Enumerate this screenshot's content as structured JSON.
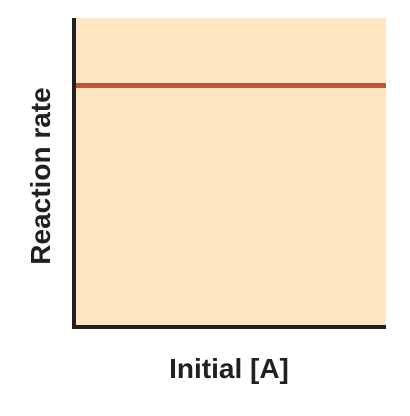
{
  "chart_data": {
    "type": "line",
    "xlabel": "Initial [A]",
    "ylabel": "Reaction rate",
    "xlim": [
      0,
      1
    ],
    "ylim": [
      0,
      1
    ],
    "series": [
      {
        "x": [
          0,
          1
        ],
        "y": [
          0.78,
          0.78
        ],
        "color": "#c0563a"
      }
    ],
    "grid": false,
    "legend": "none"
  },
  "colors": {
    "plot_background": "#fde7c0",
    "axis": "#231f20",
    "series_line": "#c0563a"
  }
}
